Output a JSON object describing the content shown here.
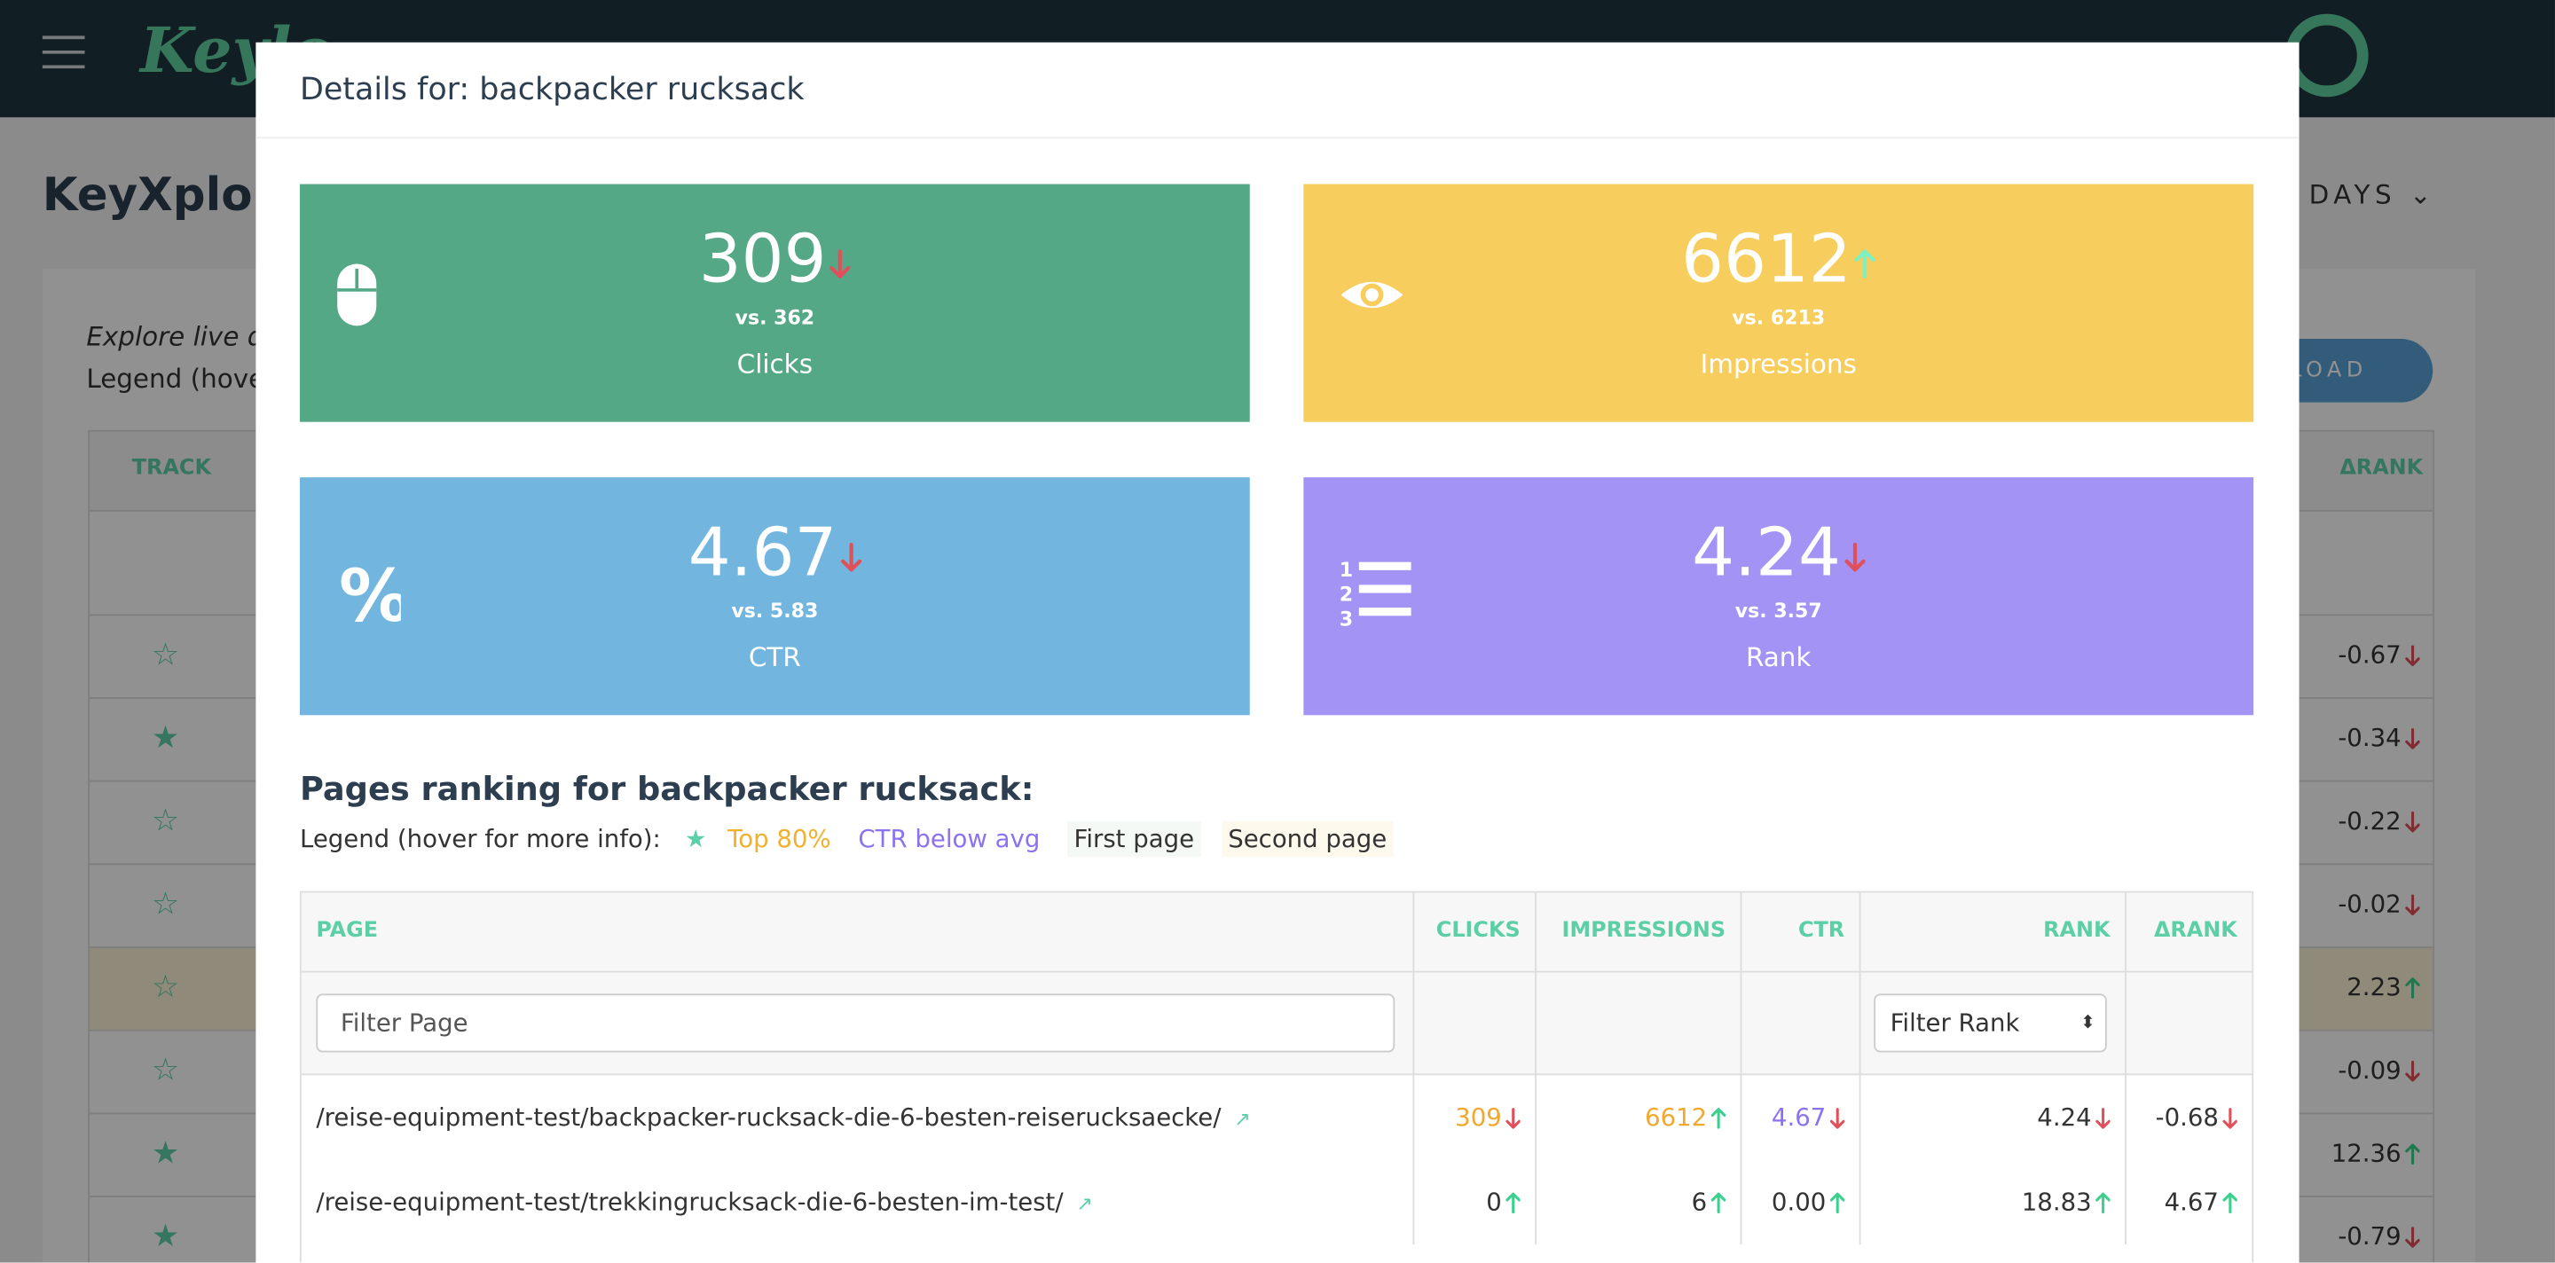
{
  "background": {
    "logo_text": "Keylo",
    "page_title": "KeyXplore",
    "period": "DAYS",
    "intro": "Explore live da",
    "legend": "Legend (hover",
    "download": "LOAD",
    "track_header": "TRACK",
    "rank_delta_header": "ΔRANK",
    "rows": [
      {
        "starred": false,
        "delta": "-0.67",
        "trend": "down"
      },
      {
        "starred": true,
        "delta": "-0.34",
        "trend": "down"
      },
      {
        "starred": false,
        "delta": "-0.22",
        "trend": "down"
      },
      {
        "starred": false,
        "delta": "-0.02",
        "trend": "down"
      },
      {
        "starred": false,
        "delta": "2.23",
        "trend": "up",
        "highlight": true
      },
      {
        "starred": false,
        "delta": "-0.09",
        "trend": "down"
      },
      {
        "starred": true,
        "delta": "12.36",
        "trend": "up"
      },
      {
        "starred": true,
        "delta": "-0.79",
        "trend": "down"
      }
    ]
  },
  "modal": {
    "title": "Details for: backpacker rucksack",
    "cards": [
      {
        "value": "309",
        "compare": "vs. 362",
        "label": "Clicks",
        "trend": "down",
        "color": "#55a886"
      },
      {
        "value": "6612",
        "compare": "vs. 6213",
        "label": "Impressions",
        "trend": "up",
        "color": "#f7cd5e"
      },
      {
        "value": "4.67",
        "compare": "vs. 5.83",
        "label": "CTR",
        "trend": "down",
        "color": "#72b6e0"
      },
      {
        "value": "4.24",
        "compare": "vs. 3.57",
        "label": "Rank",
        "trend": "down",
        "color": "#a393f5"
      }
    ],
    "section_title": "Pages ranking for backpacker rucksack:",
    "legend": {
      "label": "Legend (hover for more info):",
      "items": [
        "Top 80%",
        "CTR below avg",
        "First page",
        "Second page"
      ]
    },
    "table": {
      "headers": [
        "PAGE",
        "CLICKS",
        "IMPRESSIONS",
        "CTR",
        "RANK",
        "ΔRANK"
      ],
      "filter_page": "Filter Page",
      "filter_rank": "Filter Rank",
      "rows": [
        {
          "cells": [
            {
              "text": "/reise-equipment-test/backpacker-rucksack-die-6-besten-reiserucksaecke/"
            },
            {
              "text": "309",
              "trend": "down",
              "color": "#f0a830"
            },
            {
              "text": "6612",
              "trend": "up",
              "color": "#f0a830"
            },
            {
              "text": "4.67",
              "trend": "down",
              "color": "#8c72f0"
            },
            {
              "text": "4.24",
              "trend": "down"
            },
            {
              "text": "-0.68",
              "trend": "down"
            }
          ],
          "bg": "#f4f9f6"
        },
        {
          "cells": [
            {
              "text": "/reise-equipment-test/trekkingrucksack-die-6-besten-im-test/"
            },
            {
              "text": "0",
              "trend": "up"
            },
            {
              "text": "6",
              "trend": "up"
            },
            {
              "text": "0.00",
              "trend": "up"
            },
            {
              "text": "18.83",
              "trend": "up"
            },
            {
              "text": "4.67",
              "trend": "up"
            }
          ],
          "bg": "#fdf9ec"
        }
      ]
    }
  }
}
